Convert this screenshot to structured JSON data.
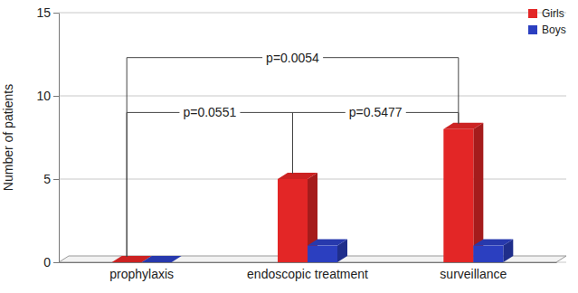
{
  "chart_data": {
    "type": "bar",
    "y_label": "Number of patients",
    "categories": [
      "prophylaxis",
      "endoscopic treatment",
      "surveillance"
    ],
    "series": [
      {
        "name": "Girls",
        "color": "#e32626",
        "values": [
          0,
          5,
          8
        ]
      },
      {
        "name": "Boys",
        "color": "#2b3fc0",
        "values": [
          0,
          1,
          1
        ]
      }
    ],
    "ylim": [
      0,
      15
    ],
    "yticks": [
      0,
      5,
      10,
      15
    ],
    "grid": true,
    "legend": "top-right",
    "annotations": [
      {
        "text": "p=0.0054",
        "from": 0,
        "to": 2
      },
      {
        "text": "p=0.0551",
        "from": 0,
        "to": 1
      },
      {
        "text": "p=0.5477",
        "from": 1,
        "to": 2
      }
    ]
  }
}
